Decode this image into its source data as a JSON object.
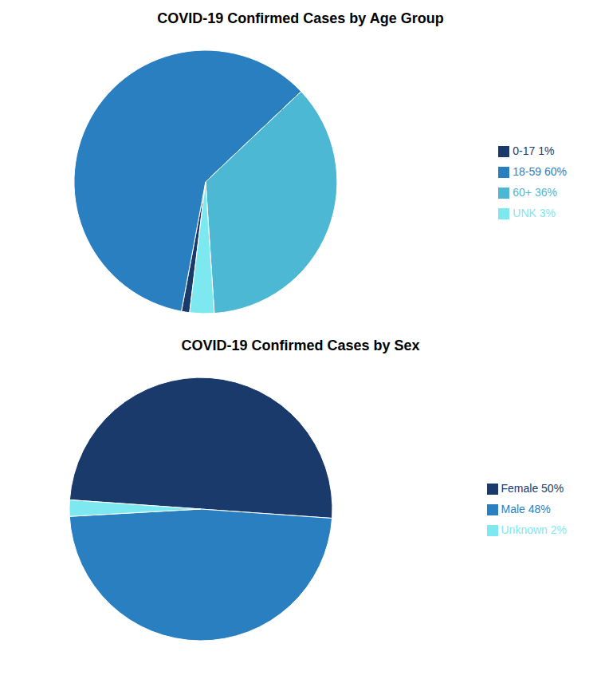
{
  "chart_data": [
    {
      "type": "pie",
      "title": "COVID-19 Confirmed Cases by Age Group",
      "categories": [
        "0-17 1%",
        "18-59 60%",
        "60+ 36%",
        "UNK 3%"
      ],
      "values": [
        1,
        60,
        36,
        3
      ],
      "colors": [
        "#1a3a6b",
        "#2a7fc1",
        "#4db8d4",
        "#7de8f0"
      ],
      "legend": "right"
    },
    {
      "type": "pie",
      "title": "COVID-19 Confirmed Cases by Sex",
      "categories": [
        "Female 50%",
        "Male 48%",
        "Unknown 2%"
      ],
      "values": [
        50,
        48,
        2
      ],
      "colors": [
        "#1a3a6b",
        "#2a7fc1",
        "#7de8f0"
      ],
      "legend": "right"
    }
  ]
}
